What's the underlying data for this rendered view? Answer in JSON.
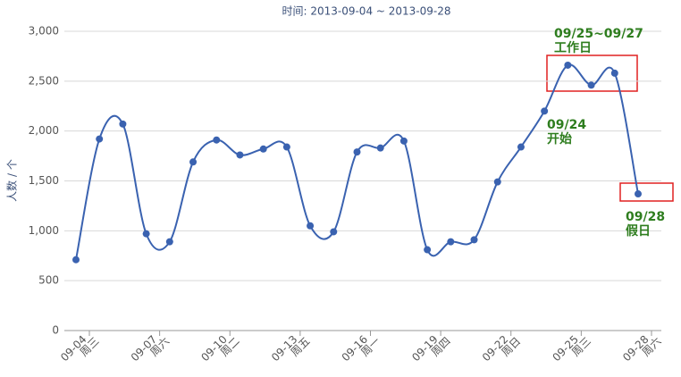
{
  "chart_data": {
    "type": "line",
    "title": "时间: 2013-09-04 ~ 2013-09-28",
    "y_label": "人数 / 个",
    "categories": [
      "09-04",
      null,
      null,
      "09-07",
      null,
      null,
      "09-10",
      null,
      null,
      "09-13",
      null,
      null,
      "09-16",
      null,
      null,
      "09-19",
      null,
      null,
      "09-22",
      null,
      null,
      "09-25",
      null,
      null,
      "09-28"
    ],
    "weekdays": [
      "周三",
      null,
      null,
      "周六",
      null,
      null,
      "周二",
      null,
      null,
      "周五",
      null,
      null,
      "周一",
      null,
      null,
      "周四",
      null,
      null,
      "周日",
      null,
      null,
      "周三",
      null,
      null,
      "周六"
    ],
    "values": [
      710,
      1920,
      2070,
      970,
      890,
      1690,
      1910,
      1760,
      1820,
      1840,
      1050,
      990,
      1790,
      1830,
      1900,
      810,
      890,
      910,
      1490,
      1840,
      2200,
      2660,
      2460,
      2580,
      1370
    ],
    "color": "#3a62b0",
    "ylim": [
      0,
      3000
    ],
    "yticks": [
      0,
      500,
      {
        "value": 1000,
        "label": "1,000"
      },
      {
        "value": 1500,
        "label": "1,500"
      },
      {
        "value": 2000,
        "label": "2,000"
      },
      {
        "value": 2500,
        "label": "2,500"
      },
      {
        "value": 3000,
        "label": "3,000"
      }
    ],
    "grid": true,
    "annotations": [
      {
        "lines": [
          "09/25~09/27",
          "工作日"
        ],
        "color": "#2e7d1e"
      },
      {
        "lines": [
          "09/24",
          "开始"
        ],
        "color": "#2e7d1e"
      },
      {
        "lines": [
          "09/28",
          "假日"
        ],
        "color": "#2e7d1e"
      }
    ]
  }
}
